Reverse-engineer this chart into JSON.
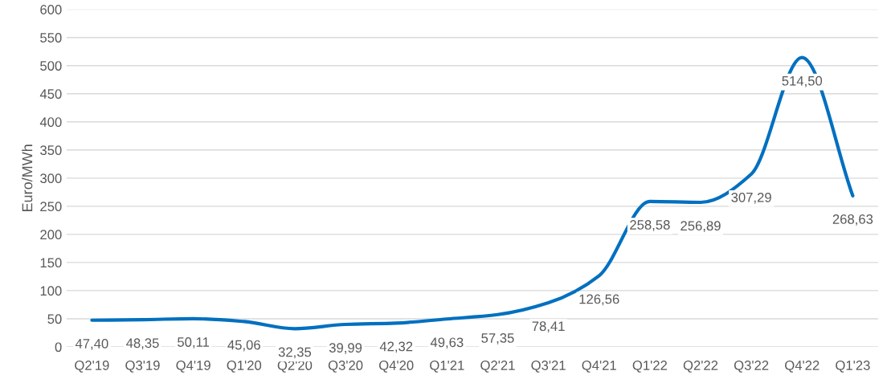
{
  "chart_data": {
    "type": "line",
    "ylabel": "Euro/MWh",
    "categories": [
      "Q2'19",
      "Q3'19",
      "Q4'19",
      "Q1'20",
      "Q2'20",
      "Q3'20",
      "Q4'20",
      "Q1'21",
      "Q2'21",
      "Q3'21",
      "Q4'21",
      "Q1'22",
      "Q2'22",
      "Q3'22",
      "Q4'22",
      "Q1'23"
    ],
    "series": [
      {
        "color": "#0070c0",
        "values": [
          47.4,
          48.35,
          50.11,
          45.06,
          32.35,
          39.99,
          42.32,
          49.63,
          57.35,
          78.41,
          126.56,
          258.58,
          256.89,
          307.29,
          514.5,
          268.63
        ],
        "value_labels": [
          "47,40",
          "48,35",
          "50,11",
          "45,06",
          "32,35",
          "39,99",
          "42,32",
          "49,63",
          "57,35",
          "78,41",
          "126,56",
          "258,58",
          "256,89",
          "307,29",
          "514,50",
          "268,63"
        ]
      }
    ],
    "ylim": [
      0,
      600
    ],
    "yticks": [
      0,
      50,
      100,
      150,
      200,
      250,
      300,
      350,
      400,
      450,
      500,
      550,
      600
    ],
    "grid": "y"
  }
}
